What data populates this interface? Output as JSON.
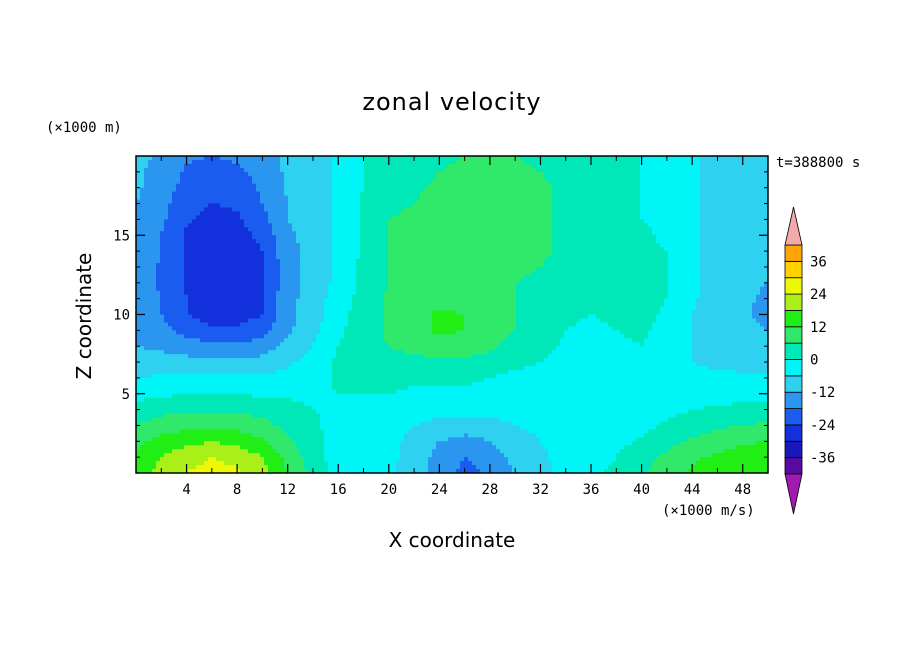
{
  "chart_data": {
    "type": "heatmap",
    "title": "zonal velocity",
    "xlabel": "X coordinate",
    "ylabel": "Z coordinate",
    "x_unit": "(×1000 m/s)",
    "y_unit": "(×1000 m)",
    "time_label": "t=388800 s",
    "xlim": [
      0,
      50
    ],
    "ylim": [
      0,
      20
    ],
    "x_ticks": [
      4,
      8,
      12,
      16,
      20,
      24,
      28,
      32,
      36,
      40,
      44,
      48
    ],
    "y_ticks": [
      5,
      10,
      15
    ],
    "colorbar": {
      "ticks": [
        36,
        24,
        12,
        0,
        -12,
        -24,
        -36
      ],
      "levels": [
        -42,
        -36,
        -30,
        -24,
        -18,
        -12,
        -6,
        0,
        6,
        12,
        18,
        24,
        30,
        36,
        42
      ],
      "colors": [
        "#9a16b4",
        "#5a0aa0",
        "#1a18b8",
        "#1230dc",
        "#1a5cf0",
        "#2a96f0",
        "#2ed2f0",
        "#00f6f6",
        "#00e8b8",
        "#30e86a",
        "#20ee14",
        "#aaf018",
        "#eef806",
        "#ffd200",
        "#ffa50c",
        "#ff7a06",
        "#ff4a04",
        "#ef1f0c"
      ],
      "over_color": "#f3a9a9",
      "under_color": "#a01ab0"
    },
    "field_grid": {
      "x": [
        0,
        2,
        4,
        6,
        8,
        10,
        12,
        14,
        16,
        18,
        20,
        22,
        24,
        26,
        28,
        30,
        32,
        34,
        36,
        38,
        40,
        42,
        44,
        46,
        48,
        50
      ],
      "z": [
        0,
        1,
        2,
        3,
        4,
        5,
        6,
        7,
        8,
        9,
        10,
        11,
        12,
        13,
        14,
        15,
        16,
        17,
        18,
        19,
        20
      ],
      "values": [
        [
          14,
          20,
          24,
          26,
          25,
          20,
          12,
          4,
          -3,
          -6,
          -5,
          -10,
          -14,
          -20,
          -17,
          -12,
          -8,
          -4,
          -2,
          2,
          5,
          9,
          13,
          15,
          17,
          18
        ],
        [
          13,
          18,
          22,
          24,
          22,
          18,
          10,
          3,
          -3,
          -5,
          -4,
          -9,
          -14,
          -18,
          -15,
          -10,
          -7,
          -4,
          -3,
          0,
          4,
          7,
          11,
          13,
          15,
          16
        ],
        [
          10,
          14,
          16,
          18,
          16,
          13,
          7,
          2,
          -3,
          -4,
          -4,
          -8,
          -12,
          -14,
          -12,
          -8,
          -6,
          -4,
          -4,
          -2,
          1,
          4,
          7,
          9,
          11,
          12
        ],
        [
          6,
          9,
          10,
          11,
          10,
          8,
          4,
          1,
          -2,
          -3,
          -3,
          -6,
          -8,
          -9,
          -8,
          -6,
          -5,
          -5,
          -5,
          -4,
          -2,
          1,
          3,
          5,
          6,
          7
        ],
        [
          2,
          4,
          5,
          5,
          5,
          4,
          2,
          0,
          -1,
          -2,
          -2,
          -3,
          -4,
          -4,
          -4,
          -4,
          -4,
          -5,
          -6,
          -5,
          -4,
          -2,
          0,
          1,
          2,
          3
        ],
        [
          -2,
          -1,
          0,
          0,
          0,
          -1,
          -1,
          -1,
          0,
          0,
          0,
          -1,
          -1,
          -1,
          -2,
          -2,
          -2,
          -4,
          -6,
          -6,
          -5,
          -4,
          -3,
          -3,
          -2,
          -2
        ],
        [
          -6,
          -5,
          -5,
          -5,
          -5,
          -5,
          -4,
          -2,
          1,
          2,
          2,
          1,
          1,
          1,
          0,
          -2,
          -2,
          -4,
          -6,
          -6,
          -6,
          -5,
          -5,
          -5,
          -5,
          -5
        ],
        [
          -10,
          -10,
          -10,
          -11,
          -11,
          -10,
          -7,
          -4,
          1,
          3,
          4,
          4,
          5,
          5,
          4,
          2,
          0,
          -2,
          -4,
          -4,
          -3,
          -4,
          -6,
          -7,
          -8,
          -9
        ],
        [
          -12,
          -13,
          -15,
          -17,
          -17,
          -15,
          -10,
          -6,
          0,
          3,
          6,
          8,
          10,
          9,
          7,
          4,
          2,
          -1,
          -2,
          -1,
          0,
          -3,
          -6,
          -8,
          -10,
          -11
        ],
        [
          -14,
          -16,
          -20,
          -23,
          -23,
          -20,
          -13,
          -8,
          -1,
          3,
          7,
          10,
          13,
          12,
          9,
          6,
          3,
          0,
          -1,
          0,
          1,
          -2,
          -6,
          -8,
          -10,
          -12
        ],
        [
          -14,
          -18,
          -24,
          -27,
          -27,
          -24,
          -14,
          -9,
          -2,
          3,
          7,
          10,
          13,
          12,
          9,
          6,
          3,
          1,
          0,
          1,
          2,
          -1,
          -6,
          -9,
          -11,
          -14
        ],
        [
          -14,
          -18,
          -24,
          -27,
          -27,
          -24,
          -14,
          -9,
          -3,
          2,
          7,
          9,
          10,
          9,
          8,
          6,
          4,
          2,
          1,
          1,
          2,
          0,
          -5,
          -9,
          -11,
          -13
        ],
        [
          -14,
          -19,
          -25,
          -28,
          -28,
          -25,
          -14,
          -10,
          -4,
          2,
          6,
          8,
          9,
          8,
          7,
          6,
          5,
          3,
          2,
          1,
          2,
          0,
          -5,
          -9,
          -11,
          -12
        ],
        [
          -14,
          -19,
          -25,
          -28,
          -28,
          -25,
          -14,
          -10,
          -5,
          2,
          6,
          8,
          9,
          9,
          8,
          7,
          6,
          4,
          2,
          1,
          2,
          0,
          -5,
          -9,
          -11,
          -12
        ],
        [
          -13,
          -18,
          -25,
          -28,
          -28,
          -24,
          -14,
          -10,
          -5,
          1,
          6,
          8,
          10,
          10,
          9,
          8,
          7,
          5,
          3,
          1,
          1,
          0,
          -5,
          -9,
          -11,
          -12
        ],
        [
          -13,
          -18,
          -25,
          -28,
          -27,
          -22,
          -13,
          -10,
          -5,
          1,
          6,
          8,
          10,
          10,
          9,
          8,
          7,
          5,
          3,
          1,
          1,
          -1,
          -5,
          -9,
          -11,
          -12
        ],
        [
          -12,
          -17,
          -23,
          -26,
          -25,
          -20,
          -12,
          -9,
          -5,
          1,
          6,
          7,
          9,
          10,
          9,
          8,
          7,
          5,
          3,
          1,
          0,
          -1,
          -5,
          -9,
          -11,
          -12
        ],
        [
          -12,
          -16,
          -22,
          -24,
          -23,
          -18,
          -12,
          -9,
          -5,
          1,
          5,
          6,
          8,
          9,
          9,
          8,
          7,
          5,
          3,
          1,
          0,
          -1,
          -5,
          -8,
          -10,
          -11
        ],
        [
          -11,
          -15,
          -20,
          -22,
          -21,
          -17,
          -11,
          -9,
          -5,
          0,
          4,
          5,
          7,
          8,
          8,
          8,
          7,
          5,
          3,
          1,
          0,
          -1,
          -5,
          -8,
          -10,
          -11
        ],
        [
          -11,
          -14,
          -19,
          -20,
          -19,
          -16,
          -11,
          -9,
          -5,
          0,
          3,
          4,
          6,
          7,
          7,
          7,
          6,
          4,
          3,
          1,
          0,
          -1,
          -5,
          -8,
          -10,
          -11
        ],
        [
          -10,
          -13,
          -17,
          -18,
          -17,
          -15,
          -10,
          -9,
          -5,
          0,
          2,
          3,
          5,
          6,
          6,
          6,
          5,
          4,
          2,
          1,
          0,
          -1,
          -5,
          -8,
          -10,
          -11
        ]
      ]
    }
  }
}
